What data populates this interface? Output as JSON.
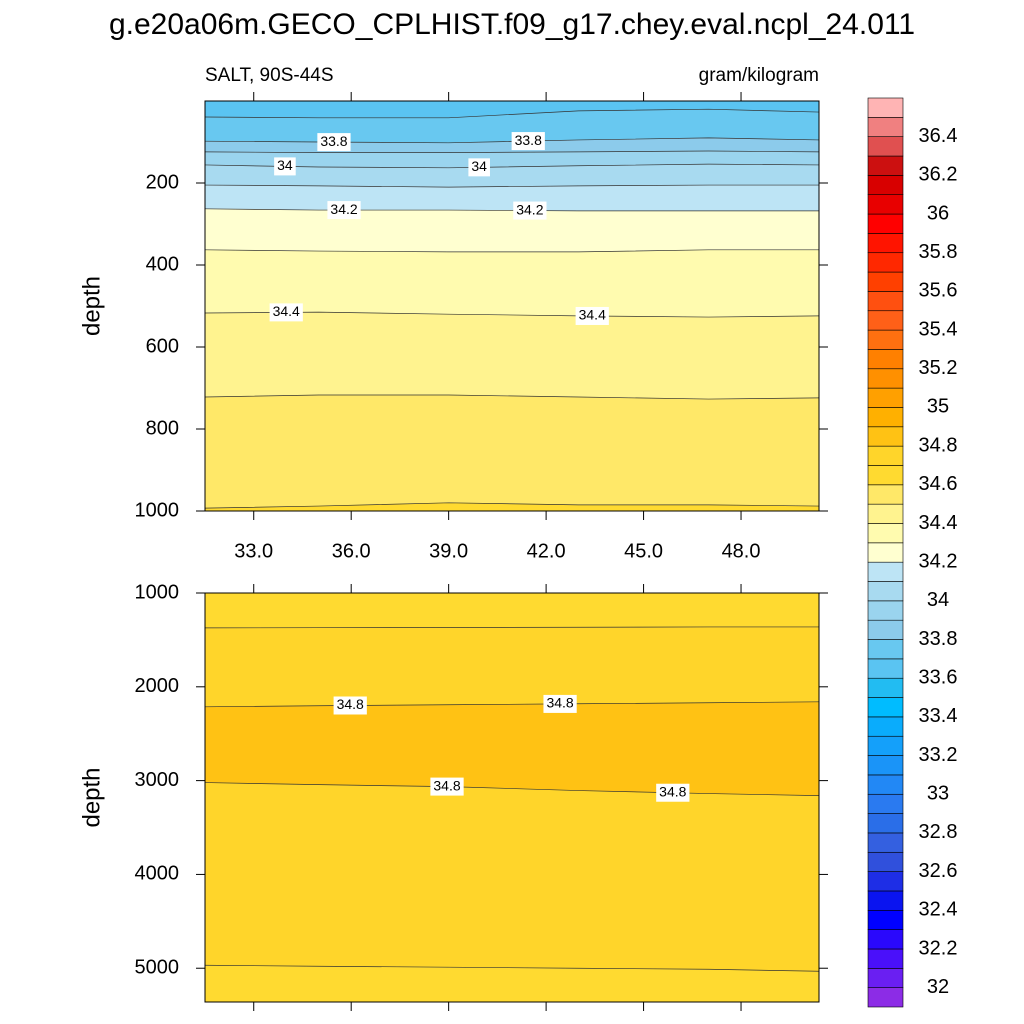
{
  "chart_data": {
    "type": "contour",
    "title": "g.e20a06m.GECO_CPLHIST.f09_g17.chey.eval.ncpl_24.011",
    "subtitle_left": "SALT, 90S-44S",
    "subtitle_right": "gram/kilogram",
    "xlim": [
      31.5,
      50.4
    ],
    "xticks": [
      {
        "value": 33,
        "label": "33.0"
      },
      {
        "value": 36,
        "label": "36.0"
      },
      {
        "value": 39,
        "label": "39.0"
      },
      {
        "value": 42,
        "label": "42.0"
      },
      {
        "value": 45,
        "label": "45.0"
      },
      {
        "value": 48,
        "label": "48.0"
      }
    ],
    "panels": [
      {
        "ylabel": "depth",
        "ylim": [
          0,
          1000
        ],
        "yticks": [
          200,
          400,
          600,
          800,
          1000
        ],
        "x": [
          31.5,
          35,
          39,
          43,
          47,
          50.4
        ],
        "contours": [
          {
            "level": 33.7,
            "depths": [
              39,
              41,
              41,
              24,
              20,
              27
            ]
          },
          {
            "level": 33.8,
            "depths": [
              98,
              100,
              102,
              95,
              90,
              95
            ]
          },
          {
            "level": 33.9,
            "depths": [
              124,
              126,
              126,
              124,
              122,
              124
            ]
          },
          {
            "level": 34,
            "depths": [
              156,
              161,
              163,
              158,
              154,
              156
            ]
          },
          {
            "level": 34.1,
            "depths": [
              205,
              207,
              210,
              207,
              205,
              205
            ]
          },
          {
            "level": 34.2,
            "depths": [
              263,
              266,
              266,
              268,
              268,
              268
            ]
          },
          {
            "level": 34.3,
            "depths": [
              363,
              366,
              368,
              368,
              363,
              363
            ]
          },
          {
            "level": 34.4,
            "depths": [
              517,
              515,
              520,
              524,
              527,
              524
            ]
          },
          {
            "level": 34.5,
            "depths": [
              722,
              717,
              717,
              722,
              727,
              724
            ]
          },
          {
            "level": 34.6,
            "depths": [
              993,
              988,
              980,
              985,
              985,
              988
            ]
          }
        ],
        "fills": [
          "#5ac4f2",
          "#68c8f0",
          "#8ccbeb",
          "#9ad4ee",
          "#a8daf0",
          "#bde4f5",
          "#ffffd0",
          "#fffbaf",
          "#fff38f",
          "#ffe868",
          "#ffda30"
        ]
      },
      {
        "ylabel": "depth",
        "ylim": [
          1000,
          5360
        ],
        "yticks": [
          1000,
          2000,
          3000,
          4000,
          5000
        ],
        "x": [
          31.5,
          35,
          39,
          43,
          47,
          50.4
        ],
        "contours": [
          {
            "level": 34.7,
            "depths": [
              1372,
              1370,
              1368,
              1365,
              1362,
              1362
            ]
          },
          {
            "level": 34.8,
            "depths": [
              2213,
              2202,
              2191,
              2181,
              2170,
              2160
            ]
          },
          {
            "level": 34.8,
            "depths": [
              3021,
              3043,
              3064,
              3106,
              3138,
              3160
            ]
          },
          {
            "level": 34.7,
            "depths": [
              4968,
              4979,
              4989,
              5000,
              5011,
              5032
            ]
          }
        ],
        "fills": [
          "#ffda30",
          "#ffd52a",
          "#ffc214",
          "#ffd52a",
          "#ffda30"
        ]
      }
    ],
    "colorbar": {
      "lim": [
        31.9,
        36.6
      ],
      "levels": [
        32,
        32.1,
        32.2,
        32.3,
        32.4,
        32.5,
        32.6,
        32.7,
        32.8,
        32.9,
        33,
        33.1,
        33.2,
        33.3,
        33.4,
        33.5,
        33.6,
        33.7,
        33.8,
        33.9,
        34,
        34.1,
        34.2,
        34.3,
        34.4,
        34.5,
        34.6,
        34.7,
        34.8,
        34.9,
        35,
        35.1,
        35.2,
        35.3,
        35.4,
        35.5,
        35.6,
        35.7,
        35.8,
        35.9,
        36,
        36.1,
        36.2,
        36.3,
        36.4,
        36.5
      ],
      "colors": [
        "#8c2ce6",
        "#6a1ff2",
        "#4a10fa",
        "#2a08fc",
        "#0000ff",
        "#0a14f0",
        "#1e2ee6",
        "#3050dc",
        "#3460e0",
        "#2a6ee8",
        "#2a7af0",
        "#2288f5",
        "#1a94f8",
        "#14a0fa",
        "#0aacfc",
        "#00bcff",
        "#22bcf2",
        "#5ac4f2",
        "#68c8f0",
        "#8ccbeb",
        "#9ad4ee",
        "#a8daf0",
        "#bde4f5",
        "#ffffd0",
        "#fffbaf",
        "#fff38f",
        "#ffe868",
        "#ffda30",
        "#ffd52a",
        "#ffc214",
        "#ffb000",
        "#ffa000",
        "#ff9000",
        "#ff8000",
        "#ff7010",
        "#ff6018",
        "#ff5010",
        "#ff4000",
        "#ff2800",
        "#ff1400",
        "#ff0000",
        "#e80000",
        "#d80000",
        "#cc1010",
        "#e05050",
        "#f08080",
        "#ffb4b4"
      ]
    }
  }
}
